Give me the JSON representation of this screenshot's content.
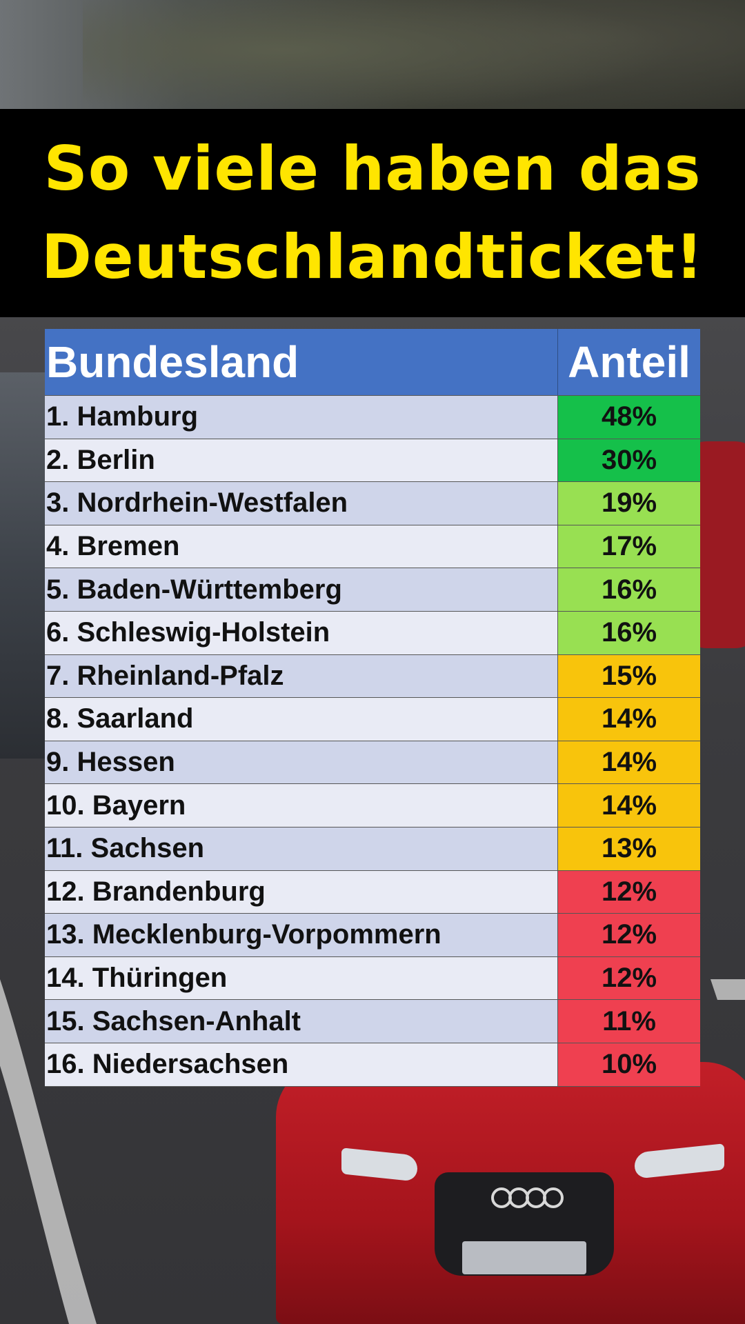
{
  "title": {
    "line1": "So viele haben das",
    "line2": "Deutschlandticket!"
  },
  "colors": {
    "title_text": "#ffe500",
    "banner_bg": "#000000",
    "header_bg": "#4472c4",
    "high": "#15c04a",
    "upper_mid": "#98e052",
    "mid": "#f8c40c",
    "low": "#ef4050"
  },
  "chart_data": {
    "type": "table",
    "columns": [
      "Bundesland",
      "Anteil"
    ],
    "rows": [
      {
        "label": "1. Hamburg",
        "value": "48%",
        "share": 48,
        "color": "#15c04a"
      },
      {
        "label": "2. Berlin",
        "value": "30%",
        "share": 30,
        "color": "#15c04a"
      },
      {
        "label": "3. Nordrhein-Westfalen",
        "value": "19%",
        "share": 19,
        "color": "#98e052"
      },
      {
        "label": "4. Bremen",
        "value": "17%",
        "share": 17,
        "color": "#98e052"
      },
      {
        "label": "5. Baden-Württemberg",
        "value": "16%",
        "share": 16,
        "color": "#98e052"
      },
      {
        "label": "6. Schleswig-Holstein",
        "value": "16%",
        "share": 16,
        "color": "#98e052"
      },
      {
        "label": "7. Rheinland-Pfalz",
        "value": "15%",
        "share": 15,
        "color": "#f8c40c"
      },
      {
        "label": "8. Saarland",
        "value": "14%",
        "share": 14,
        "color": "#f8c40c"
      },
      {
        "label": "9. Hessen",
        "value": "14%",
        "share": 14,
        "color": "#f8c40c"
      },
      {
        "label": "10. Bayern",
        "value": "14%",
        "share": 14,
        "color": "#f8c40c"
      },
      {
        "label": "11. Sachsen",
        "value": "13%",
        "share": 13,
        "color": "#f8c40c"
      },
      {
        "label": "12. Brandenburg",
        "value": "12%",
        "share": 12,
        "color": "#ef4050"
      },
      {
        "label": "13. Mecklenburg-Vorpommern",
        "value": "12%",
        "share": 12,
        "color": "#ef4050"
      },
      {
        "label": "14. Thüringen",
        "value": "12%",
        "share": 12,
        "color": "#ef4050"
      },
      {
        "label": "15. Sachsen-Anhalt",
        "value": "11%",
        "share": 11,
        "color": "#ef4050"
      },
      {
        "label": "16. Niedersachsen",
        "value": "10%",
        "share": 10,
        "color": "#ef4050"
      }
    ]
  }
}
